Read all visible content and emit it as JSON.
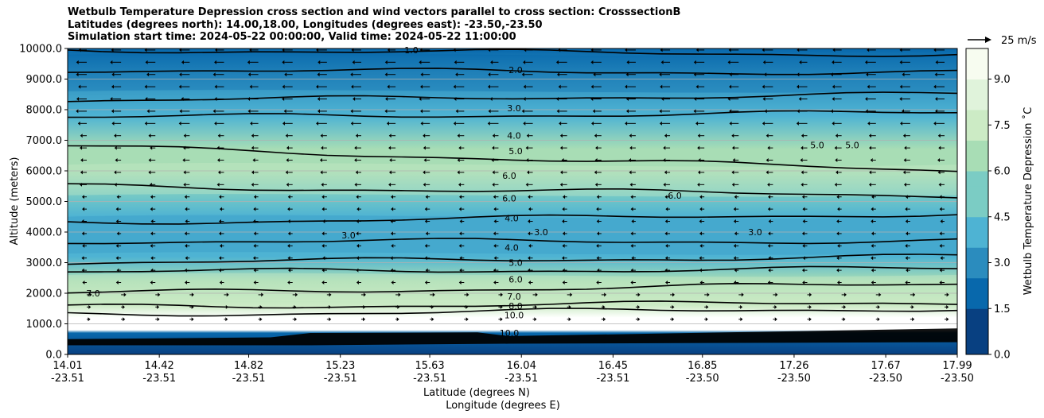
{
  "title_lines": [
    "Wetbulb Temperature Depression cross section and wind vectors parallel to cross section: CrosssectionB",
    "Latitudes (degrees north): 14.00,18.00, Longitudes (degrees east): -23.50,-23.50",
    "Simulation start time: 2024-05-22 00:00:00, Valid time: 2024-05-22 11:00:00"
  ],
  "chart_data": {
    "type": "heatmap",
    "ylabel": "Altitude (meters)",
    "xlabel_lat": "Latitude (degrees N)",
    "xlabel_lon": "Longitude (degrees E)",
    "ylim": [
      0,
      10000
    ],
    "yticks": [
      0,
      1000,
      2000,
      3000,
      4000,
      5000,
      6000,
      7000,
      8000,
      9000,
      10000
    ],
    "ytick_labels": [
      "0.0",
      "1000.0",
      "2000.0",
      "3000.0",
      "4000.0",
      "5000.0",
      "6000.0",
      "7000.0",
      "8000.0",
      "9000.0",
      "10000.0"
    ],
    "grid_y": true,
    "xticks": [
      {
        "lat": "14.01",
        "lon": "-23.51"
      },
      {
        "lat": "14.42",
        "lon": "-23.51"
      },
      {
        "lat": "14.82",
        "lon": "-23.51"
      },
      {
        "lat": "15.23",
        "lon": "-23.51"
      },
      {
        "lat": "15.63",
        "lon": "-23.51"
      },
      {
        "lat": "16.04",
        "lon": "-23.51"
      },
      {
        "lat": "16.45",
        "lon": "-23.51"
      },
      {
        "lat": "16.85",
        "lon": "-23.50"
      },
      {
        "lat": "17.26",
        "lon": "-23.50"
      },
      {
        "lat": "17.67",
        "lon": "-23.50"
      },
      {
        "lat": "17.99",
        "lon": "-23.50"
      }
    ],
    "colorbar": {
      "label": "Wetbulb Temperature Depression ˚C",
      "min": 0,
      "max": 10,
      "tick_values": [
        0,
        1.5,
        3,
        4.5,
        6,
        7.5,
        9
      ],
      "tick_labels": [
        "0.0",
        "1.5",
        "3.0",
        "4.5",
        "6.0",
        "7.5",
        "9.0"
      ],
      "colors": [
        "#084081",
        "#0868ac",
        "#2b8cbe",
        "#4eb3d3",
        "#7bccc4",
        "#a8ddb5",
        "#ccebc5",
        "#e0f3db",
        "#f7fcf0"
      ]
    },
    "vector_key": "25 m/s",
    "contours": [
      {
        "level": "1.0",
        "alt_left": 9950,
        "alt_right": 9800
      },
      {
        "level": "2.0",
        "alt_left": 9300,
        "alt_right": 9200
      },
      {
        "level": "3.0",
        "alt_left": 8300,
        "alt_right": 8500
      },
      {
        "level": "4.0",
        "alt_left": 7750,
        "alt_right": 7900
      },
      {
        "level": "5.0",
        "alt_left": 6800,
        "alt_right": 6000
      },
      {
        "level": "6.0",
        "alt_left": 5500,
        "alt_right": 5200
      },
      {
        "level": "4.0",
        "alt_left": 4300,
        "alt_right": 4600
      },
      {
        "level": "4.0",
        "alt_left": 3700,
        "alt_right": 3700
      },
      {
        "level": "5.0",
        "alt_left": 3000,
        "alt_right": 3200
      },
      {
        "level": "6.0",
        "alt_left": 2700,
        "alt_right": 2800
      },
      {
        "level": "7.0",
        "alt_left": 2000,
        "alt_right": 2300
      },
      {
        "level": "8.0",
        "alt_left": 1550,
        "alt_right": 1700
      },
      {
        "level": "10.0",
        "alt_left": 1300,
        "alt_right": 1500
      }
    ],
    "contour_labels": [
      "1.0",
      "2.0",
      "3.0",
      "4.0",
      "5.0",
      "6.0",
      "6.0",
      "4.0",
      "3.0",
      "3.0",
      "4.0",
      "5.0",
      "6.0",
      "7.0",
      "7.0",
      "8.0",
      "10.0",
      "10.0",
      "5.0",
      "5.0",
      "6.0",
      "3.0"
    ]
  }
}
